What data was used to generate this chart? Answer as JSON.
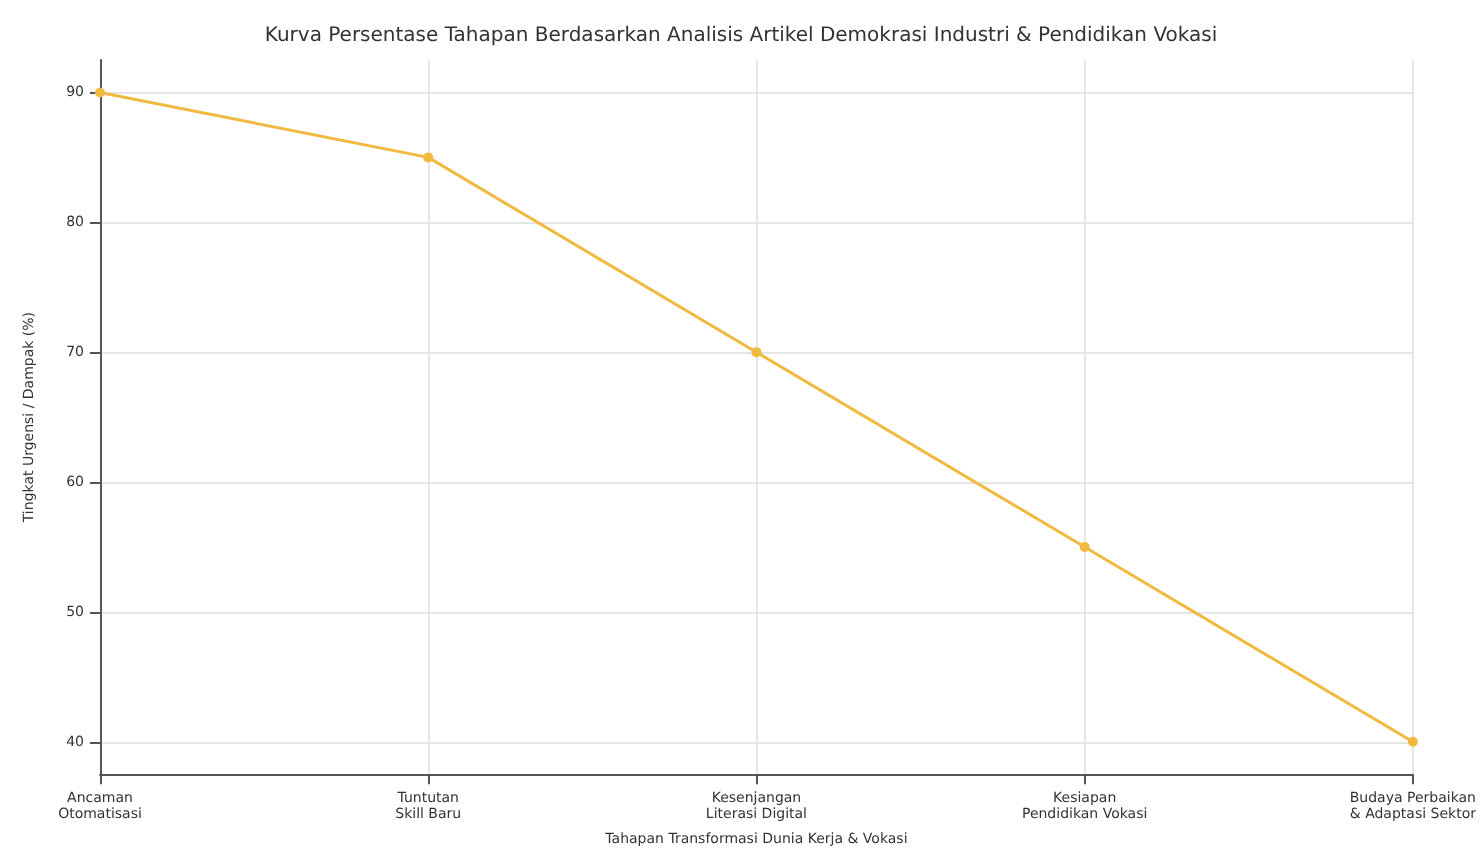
{
  "chart_data": {
    "type": "line",
    "title": "Kurva Persentase Tahapan Berdasarkan Analisis Artikel Demokrasi Industri & Pendidikan Vokasi",
    "xlabel": "Tahapan Transformasi Dunia Kerja & Vokasi",
    "ylabel": "Tingkat Urgensi / Dampak (%)",
    "categories": [
      "Ancaman\nOtomatisasi",
      "Tuntutan\nSkill Baru",
      "Kesenjangan\nLiterasi Digital",
      "Kesiapan\nPendidikan Vokasi",
      "Budaya Perbaikan\n& Adaptasi Sektor"
    ],
    "series": [
      {
        "color": "#f0b940",
        "values": [
          90,
          85,
          70,
          55,
          40
        ]
      }
    ],
    "ylim": [
      37.5,
      92.5
    ],
    "yticks": [
      40,
      50,
      60,
      70,
      80,
      90
    ],
    "grid": true,
    "marker": "circle",
    "line_style": "solid"
  }
}
